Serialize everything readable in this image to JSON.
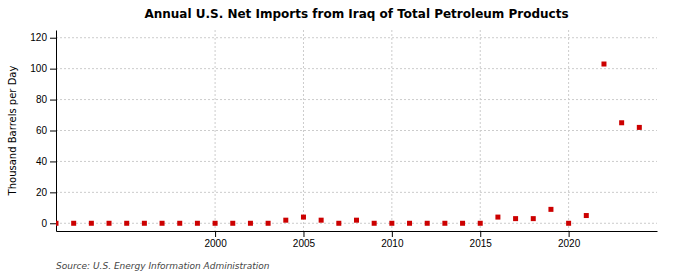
{
  "chart_data": {
    "type": "scatter",
    "title": "Annual U.S. Net Imports from Iraq of Total Petroleum Products",
    "ylabel": "Thousand Barrels per Day",
    "annotations": [
      "Source: U.S. Energy Information Administration"
    ],
    "x": [
      1991,
      1992,
      1993,
      1994,
      1995,
      1996,
      1997,
      1998,
      1999,
      2000,
      2001,
      2002,
      2003,
      2004,
      2005,
      2006,
      2007,
      2008,
      2009,
      2010,
      2011,
      2012,
      2013,
      2014,
      2015,
      2016,
      2017,
      2018,
      2019,
      2020,
      2021,
      2022,
      2023,
      2024
    ],
    "values": [
      0,
      0,
      0,
      0,
      0,
      0,
      0,
      0,
      0,
      0,
      0,
      0,
      0,
      2,
      4,
      2,
      0,
      2,
      0,
      0,
      0,
      0,
      0,
      0,
      0,
      4,
      3,
      3,
      9,
      0,
      5,
      103,
      65,
      62
    ],
    "color": "#cc0000",
    "marker": "square",
    "xlim": [
      1991,
      2025
    ],
    "ylim": [
      -5,
      125
    ],
    "xticks": [
      2000,
      2005,
      2010,
      2015,
      2020
    ],
    "yticks": [
      0,
      20,
      40,
      60,
      80,
      100,
      120
    ],
    "grid": true
  }
}
